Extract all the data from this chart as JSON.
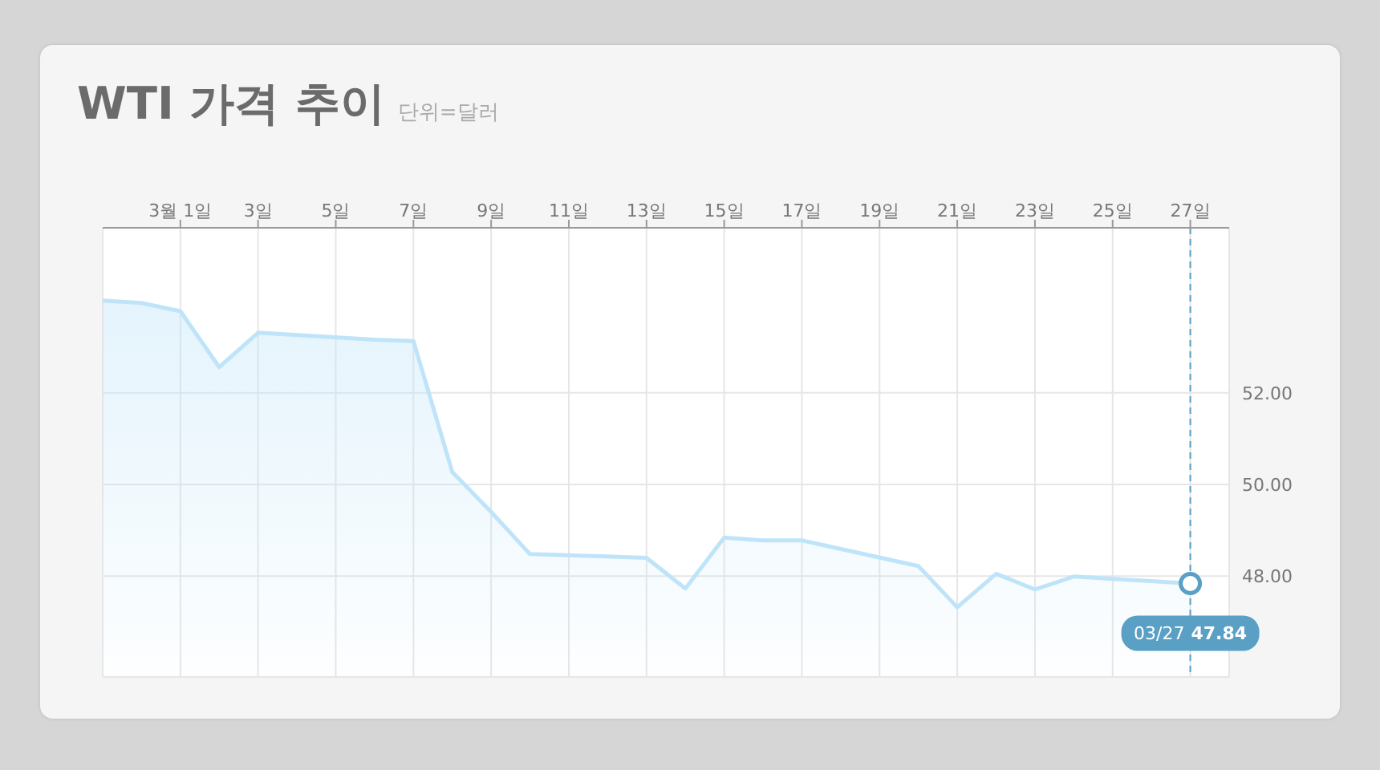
{
  "chart_data": {
    "type": "area",
    "title": "WTI 가격 추이",
    "subtitle": "단위=달러",
    "x": [
      "--02-27",
      "--02-28",
      "--03-01",
      "--03-02",
      "--03-03",
      "--03-06",
      "--03-07",
      "--03-08",
      "--03-09",
      "--03-10",
      "--03-13",
      "--03-14",
      "--03-15",
      "--03-16",
      "--03-17",
      "--03-20",
      "--03-21",
      "--03-22",
      "--03-23",
      "--03-24",
      "--03-27"
    ],
    "series": [
      {
        "color": "#bfe4f9",
        "values": [
          54.01,
          53.96,
          53.78,
          52.56,
          53.31,
          53.16,
          53.13,
          50.27,
          49.4,
          48.48,
          48.4,
          47.73,
          48.84,
          48.78,
          48.78,
          48.22,
          47.32,
          48.05,
          47.71,
          47.99,
          47.84
        ]
      }
    ],
    "xlim": [
      "--02-27",
      "--03-28"
    ],
    "xticks": [
      {
        "value": "--03-01",
        "label": "3월 1일"
      },
      {
        "value": "--03-03",
        "label": "3일"
      },
      {
        "value": "--03-05",
        "label": "5일"
      },
      {
        "value": "--03-07",
        "label": "7일"
      },
      {
        "value": "--03-09",
        "label": "9일"
      },
      {
        "value": "--03-11",
        "label": "11일"
      },
      {
        "value": "--03-13",
        "label": "13일"
      },
      {
        "value": "--03-15",
        "label": "15일"
      },
      {
        "value": "--03-17",
        "label": "17일"
      },
      {
        "value": "--03-19",
        "label": "19일"
      },
      {
        "value": "--03-21",
        "label": "21일"
      },
      {
        "value": "--03-23",
        "label": "23일"
      },
      {
        "value": "--03-25",
        "label": "25일"
      },
      {
        "value": "--03-27",
        "label": "27일"
      }
    ],
    "ylim": [
      45.8,
      55.6
    ],
    "yticks": [
      {
        "value": 48,
        "label": "48.00"
      },
      {
        "value": 50,
        "label": "50.00"
      },
      {
        "value": 52,
        "label": "52.00"
      }
    ],
    "grid": true,
    "marker": "none",
    "ref_lines": [
      {
        "axis": "x",
        "value": "--03-27",
        "label": null,
        "color": "#5a9fc4",
        "line_style": "dashed"
      }
    ],
    "annotations": [
      {
        "text": "03/27 47.84",
        "x": "--03-27",
        "y": 47.84
      }
    ]
  }
}
